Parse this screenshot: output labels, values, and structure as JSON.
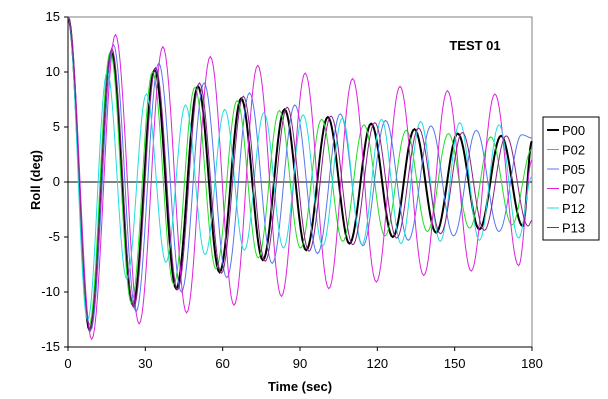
{
  "chart_data": {
    "type": "line",
    "annotation": "TEST 01",
    "xlabel": "Time (sec)",
    "ylabel": "Roll (deg)",
    "xlim": [
      0,
      180
    ],
    "ylim": [
      -15,
      15
    ],
    "xticks": [
      0,
      30,
      60,
      90,
      120,
      150,
      180
    ],
    "yticks": [
      -15,
      -10,
      -5,
      0,
      5,
      10,
      15
    ],
    "grid": false,
    "legend_position": "right",
    "series": [
      {
        "name": "P00",
        "color": "#000000",
        "x": [
          0,
          8.4,
          16.8,
          25.2,
          33.6,
          42.0,
          50.4,
          58.8,
          67.2,
          75.6,
          84.0,
          92.4,
          100.8,
          109.2,
          117.6,
          126.0,
          134.4,
          142.8,
          151.2,
          159.6,
          168.0,
          176.4,
          180
        ],
        "y": [
          15,
          -13.5,
          11.8,
          -11.2,
          10.2,
          -9.7,
          8.7,
          -8.2,
          7.6,
          -7.1,
          6.6,
          -6.2,
          5.9,
          -5.6,
          5.3,
          -5.0,
          4.8,
          -4.6,
          4.4,
          -4.3,
          4.2,
          -4.0,
          3.7
        ]
      },
      {
        "name": "P02",
        "color": "#22dd22",
        "x": [
          0,
          8.2,
          16.4,
          24.6,
          32.8,
          41.0,
          49.2,
          57.4,
          65.6,
          73.8,
          82.0,
          90.2,
          98.4,
          106.6,
          114.8,
          123.0,
          131.2,
          139.4,
          147.6,
          155.8,
          164.0,
          172.2,
          180
        ],
        "y": [
          15,
          -13.0,
          11.8,
          -11.0,
          10.0,
          -9.3,
          8.6,
          -7.9,
          7.4,
          -6.9,
          6.5,
          -6.0,
          5.7,
          -5.4,
          5.2,
          -4.9,
          4.7,
          -4.5,
          4.4,
          -4.2,
          4.1,
          -3.9,
          3.0
        ]
      },
      {
        "name": "P05",
        "color": "#5577ee",
        "x": [
          0,
          8.8,
          17.6,
          26.4,
          35.2,
          44.0,
          52.8,
          61.6,
          70.4,
          79.2,
          88.0,
          96.8,
          105.6,
          114.4,
          123.2,
          132.0,
          140.8,
          149.6,
          158.4,
          167.2,
          176.0,
          180
        ],
        "y": [
          15,
          -13.5,
          12.5,
          -11.8,
          10.8,
          -10.0,
          9.0,
          -8.7,
          8.1,
          -7.4,
          7.0,
          -6.5,
          6.2,
          -5.8,
          5.6,
          -5.3,
          5.1,
          -4.9,
          4.7,
          -4.5,
          4.3,
          4.0
        ]
      },
      {
        "name": "P07",
        "color": "#dd22dd",
        "x": [
          0,
          9.2,
          18.4,
          27.6,
          36.8,
          46.0,
          55.2,
          64.4,
          73.6,
          82.8,
          92.0,
          101.2,
          110.4,
          119.6,
          128.8,
          138.0,
          147.2,
          156.4,
          165.6,
          174.8,
          180
        ],
        "y": [
          15,
          -14.3,
          13.4,
          -12.9,
          12.3,
          -11.9,
          11.4,
          -11.2,
          10.6,
          -10.4,
          9.9,
          -9.7,
          9.4,
          -9.1,
          8.7,
          -8.5,
          8.3,
          -8.1,
          8.0,
          -7.6,
          2.0
        ]
      },
      {
        "name": "P12",
        "color": "#22dddd",
        "x": [
          0,
          7.6,
          15.2,
          22.8,
          30.4,
          38.0,
          45.6,
          53.2,
          60.8,
          68.4,
          76.0,
          83.6,
          91.2,
          98.8,
          106.4,
          114.0,
          121.6,
          129.2,
          136.8,
          144.4,
          152.0,
          159.6,
          167.2,
          174.8,
          180
        ],
        "y": [
          15,
          -12.6,
          10.0,
          -8.8,
          8.0,
          -7.3,
          7.0,
          -6.6,
          6.6,
          -6.2,
          6.3,
          -6.0,
          6.1,
          -5.8,
          5.8,
          -5.7,
          5.7,
          -5.6,
          5.5,
          -5.4,
          5.4,
          -5.3,
          5.2,
          -5.1,
          0.5
        ]
      },
      {
        "name": "P13",
        "color": "#882288",
        "x": [
          0,
          8.5,
          17.0,
          25.5,
          34.0,
          42.5,
          51.0,
          59.5,
          68.0,
          76.5,
          85.0,
          93.5,
          102.0,
          110.5,
          119.0,
          127.5,
          136.0,
          144.5,
          153.0,
          161.5,
          170.0,
          178.5,
          180
        ],
        "y": [
          15,
          -13.4,
          12.1,
          -11.4,
          10.4,
          -9.8,
          9.0,
          -8.3,
          7.8,
          -7.2,
          6.8,
          -6.3,
          6.0,
          -5.7,
          5.4,
          -5.1,
          4.9,
          -4.7,
          4.5,
          -4.4,
          4.2,
          -4.0,
          -3.5
        ]
      }
    ]
  }
}
